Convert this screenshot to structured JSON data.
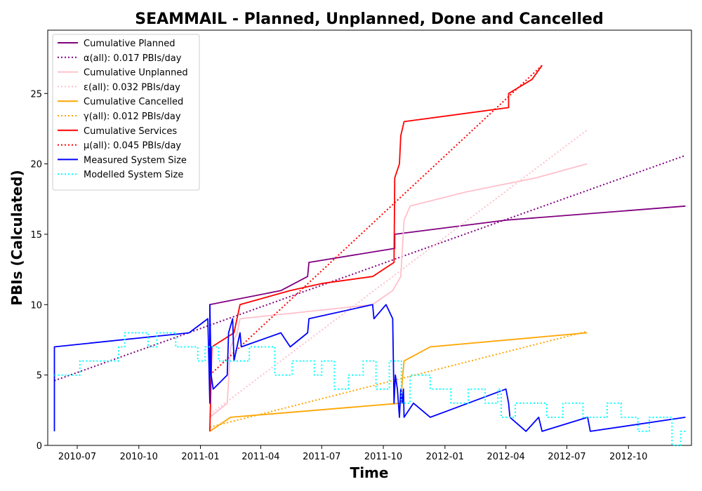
{
  "chart_data": {
    "type": "line",
    "title": "SEAMMAIL - Planned, Unplanned, Done  and Cancelled",
    "xlabel": "Time",
    "ylabel": "PBIs (Calculated)",
    "xlim": [
      "2010-05-18",
      "2013-01-03"
    ],
    "ylim": [
      0,
      29.5
    ],
    "x_ticks": [
      "2010-07-01",
      "2010-10-01",
      "2011-01-01",
      "2011-04-01",
      "2011-07-01",
      "2011-10-01",
      "2012-01-01",
      "2012-04-01",
      "2012-07-01",
      "2012-10-01"
    ],
    "x_tick_labels": [
      "2010-07",
      "2010-10",
      "2011-01",
      "2011-04",
      "2011-07",
      "2011-10",
      "2012-01",
      "2012-04",
      "2012-07",
      "2012-10"
    ],
    "y_ticks": [
      0,
      5,
      10,
      15,
      20,
      25
    ],
    "y_tick_labels": [
      "0",
      "5",
      "10",
      "15",
      "20",
      "25"
    ],
    "legend_position": "top-left",
    "grid": false,
    "series": [
      {
        "name": "Cumulative Planned",
        "color": "#800080",
        "style": "solid",
        "points": [
          [
            "2011-01-15",
            6
          ],
          [
            "2011-01-15",
            10
          ],
          [
            "2011-05-01",
            11
          ],
          [
            "2011-06-10",
            12
          ],
          [
            "2011-06-12",
            13
          ],
          [
            "2011-10-18",
            14
          ],
          [
            "2011-10-18",
            15
          ],
          [
            "2012-04-01",
            16
          ],
          [
            "2012-12-25",
            17
          ]
        ]
      },
      {
        "name": "α(all): 0.017 PBIs/day",
        "color": "#800080",
        "style": "dotted",
        "points": [
          [
            "2010-05-28",
            4.6
          ],
          [
            "2012-12-25",
            20.6
          ]
        ]
      },
      {
        "name": "Cumulative Unplanned",
        "color": "#ffc0cb",
        "style": "solid",
        "points": [
          [
            "2011-01-15",
            2
          ],
          [
            "2011-02-10",
            3
          ],
          [
            "2011-02-15",
            7
          ],
          [
            "2011-02-25",
            8
          ],
          [
            "2011-03-01",
            9
          ],
          [
            "2011-09-15",
            10
          ],
          [
            "2011-10-15",
            11
          ],
          [
            "2011-10-27",
            12
          ],
          [
            "2011-11-01",
            16
          ],
          [
            "2011-11-10",
            17
          ],
          [
            "2012-02-01",
            18
          ],
          [
            "2012-05-15",
            19
          ],
          [
            "2012-07-31",
            20
          ]
        ]
      },
      {
        "name": "ε(all): 0.032 PBIs/day",
        "color": "#ffc0cb",
        "style": "dotted",
        "points": [
          [
            "2011-01-15",
            2.2
          ],
          [
            "2012-07-31",
            22.4
          ]
        ]
      },
      {
        "name": "Cumulative Cancelled",
        "color": "#ffa500",
        "style": "solid",
        "points": [
          [
            "2011-01-15",
            1
          ],
          [
            "2011-02-15",
            2
          ],
          [
            "2011-10-27",
            3
          ],
          [
            "2011-10-30",
            5
          ],
          [
            "2011-11-01",
            6
          ],
          [
            "2011-12-10",
            7
          ],
          [
            "2012-07-31",
            8
          ]
        ]
      },
      {
        "name": "γ(all): 0.012 PBIs/day",
        "color": "#ffa500",
        "style": "dotted",
        "points": [
          [
            "2011-01-15",
            1.3
          ],
          [
            "2012-07-31",
            8.1
          ]
        ]
      },
      {
        "name": "Cumulative Services",
        "color": "#ff0000",
        "style": "solid",
        "points": [
          [
            "2011-01-15",
            1
          ],
          [
            "2011-01-18",
            7
          ],
          [
            "2011-02-20",
            8
          ],
          [
            "2011-03-01",
            10
          ],
          [
            "2011-05-15",
            11
          ],
          [
            "2011-07-01",
            11.5
          ],
          [
            "2011-09-15",
            12
          ],
          [
            "2011-10-17",
            13
          ],
          [
            "2011-10-18",
            19
          ],
          [
            "2011-10-25",
            20
          ],
          [
            "2011-10-27",
            22
          ],
          [
            "2011-11-01",
            23
          ],
          [
            "2012-04-05",
            24
          ],
          [
            "2012-04-05",
            25
          ],
          [
            "2012-05-10",
            26
          ],
          [
            "2012-05-25",
            27
          ]
        ]
      },
      {
        "name": "μ(all): 0.045 PBIs/day",
        "color": "#ff0000",
        "style": "dotted",
        "points": [
          [
            "2011-01-15",
            5
          ],
          [
            "2012-05-25",
            27
          ]
        ]
      },
      {
        "name": "Measured System Size",
        "color": "#0000ff",
        "style": "solid",
        "points": [
          [
            "2010-05-28",
            1
          ],
          [
            "2010-05-28",
            7
          ],
          [
            "2010-12-15",
            8
          ],
          [
            "2011-01-12",
            9
          ],
          [
            "2011-01-15",
            3
          ],
          [
            "2011-01-15",
            10
          ],
          [
            "2011-01-17",
            5
          ],
          [
            "2011-01-20",
            4
          ],
          [
            "2011-02-10",
            5
          ],
          [
            "2011-02-12",
            8
          ],
          [
            "2011-02-18",
            9
          ],
          [
            "2011-02-20",
            6
          ],
          [
            "2011-03-01",
            8
          ],
          [
            "2011-03-03",
            7
          ],
          [
            "2011-05-01",
            8
          ],
          [
            "2011-05-15",
            7
          ],
          [
            "2011-06-10",
            8
          ],
          [
            "2011-06-12",
            9
          ],
          [
            "2011-09-15",
            10
          ],
          [
            "2011-09-17",
            9
          ],
          [
            "2011-10-05",
            10
          ],
          [
            "2011-10-15",
            9
          ],
          [
            "2011-10-17",
            3
          ],
          [
            "2011-10-19",
            5
          ],
          [
            "2011-10-22",
            4
          ],
          [
            "2011-10-25",
            2
          ],
          [
            "2011-10-27",
            4
          ],
          [
            "2011-10-29",
            3
          ],
          [
            "2011-10-31",
            4
          ],
          [
            "2011-11-01",
            2
          ],
          [
            "2011-11-15",
            3
          ],
          [
            "2011-12-10",
            2
          ],
          [
            "2012-04-01",
            4
          ],
          [
            "2012-04-05",
            3
          ],
          [
            "2012-04-07",
            2
          ],
          [
            "2012-05-01",
            1
          ],
          [
            "2012-05-20",
            2
          ],
          [
            "2012-05-25",
            1
          ],
          [
            "2012-08-01",
            2
          ],
          [
            "2012-08-05",
            1
          ],
          [
            "2012-12-25",
            2
          ]
        ]
      },
      {
        "name": "Modelled System Size",
        "color": "#00ffff",
        "style": "dotted",
        "points": [
          [
            "2010-05-28",
            5
          ],
          [
            "2010-07-05",
            5
          ],
          [
            "2010-07-05",
            6
          ],
          [
            "2010-09-01",
            6
          ],
          [
            "2010-09-01",
            7
          ],
          [
            "2010-09-10",
            7
          ],
          [
            "2010-09-10",
            8
          ],
          [
            "2010-10-15",
            8
          ],
          [
            "2010-10-15",
            7
          ],
          [
            "2010-10-28",
            7
          ],
          [
            "2010-10-28",
            8
          ],
          [
            "2010-11-25",
            8
          ],
          [
            "2010-11-25",
            7
          ],
          [
            "2010-12-28",
            7
          ],
          [
            "2010-12-28",
            6
          ],
          [
            "2011-01-08",
            6
          ],
          [
            "2011-01-08",
            7
          ],
          [
            "2011-01-28",
            7
          ],
          [
            "2011-01-28",
            6
          ],
          [
            "2011-03-15",
            6
          ],
          [
            "2011-03-15",
            7
          ],
          [
            "2011-04-22",
            7
          ],
          [
            "2011-04-22",
            5
          ],
          [
            "2011-05-18",
            5
          ],
          [
            "2011-05-18",
            6
          ],
          [
            "2011-06-20",
            6
          ],
          [
            "2011-06-20",
            5
          ],
          [
            "2011-07-01",
            5
          ],
          [
            "2011-07-01",
            6
          ],
          [
            "2011-07-20",
            6
          ],
          [
            "2011-07-20",
            4
          ],
          [
            "2011-08-10",
            4
          ],
          [
            "2011-08-10",
            5
          ],
          [
            "2011-09-01",
            5
          ],
          [
            "2011-09-01",
            6
          ],
          [
            "2011-09-20",
            6
          ],
          [
            "2011-09-20",
            4
          ],
          [
            "2011-10-10",
            4
          ],
          [
            "2011-10-10",
            6
          ],
          [
            "2011-10-28",
            6
          ],
          [
            "2011-10-28",
            3
          ],
          [
            "2011-11-10",
            3
          ],
          [
            "2011-11-10",
            5
          ],
          [
            "2011-12-10",
            5
          ],
          [
            "2011-12-10",
            4
          ],
          [
            "2012-01-10",
            4
          ],
          [
            "2012-01-10",
            3
          ],
          [
            "2012-02-05",
            3
          ],
          [
            "2012-02-05",
            4
          ],
          [
            "2012-03-01",
            4
          ],
          [
            "2012-03-01",
            3
          ],
          [
            "2012-03-20",
            3
          ],
          [
            "2012-03-20",
            4
          ],
          [
            "2012-03-25",
            4
          ],
          [
            "2012-03-25",
            2
          ],
          [
            "2012-04-15",
            2
          ],
          [
            "2012-04-15",
            3
          ],
          [
            "2012-06-01",
            3
          ],
          [
            "2012-06-01",
            2
          ],
          [
            "2012-06-25",
            2
          ],
          [
            "2012-06-25",
            3
          ],
          [
            "2012-07-25",
            3
          ],
          [
            "2012-07-25",
            2
          ],
          [
            "2012-08-30",
            2
          ],
          [
            "2012-08-30",
            3
          ],
          [
            "2012-09-20",
            3
          ],
          [
            "2012-09-20",
            2
          ],
          [
            "2012-10-15",
            2
          ],
          [
            "2012-10-15",
            1
          ],
          [
            "2012-11-01",
            1
          ],
          [
            "2012-11-01",
            2
          ],
          [
            "2012-12-05",
            2
          ],
          [
            "2012-12-05",
            0
          ],
          [
            "2012-12-18",
            0
          ],
          [
            "2012-12-18",
            1
          ],
          [
            "2012-12-25",
            1
          ]
        ]
      }
    ]
  }
}
